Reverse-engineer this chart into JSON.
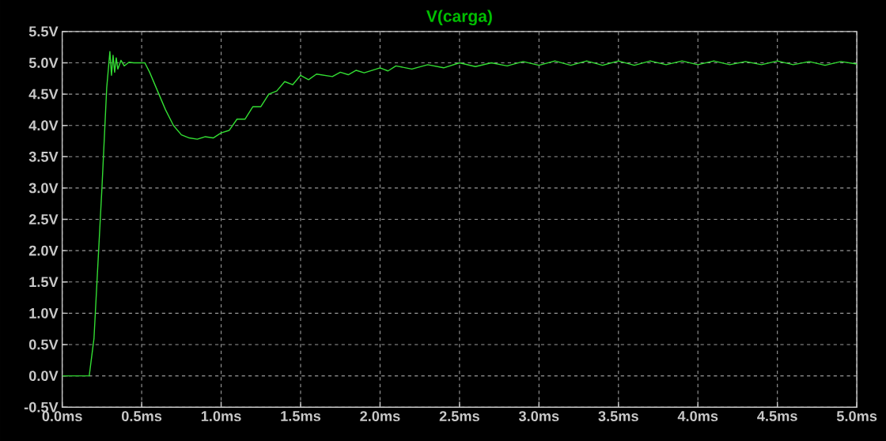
{
  "chart_data": {
    "type": "line",
    "title": "V(carga)",
    "x": [
      0,
      0.17,
      0.2,
      0.25,
      0.28,
      0.3,
      0.31,
      0.32,
      0.33,
      0.34,
      0.35,
      0.37,
      0.39,
      0.42,
      0.45,
      0.52,
      0.55,
      0.6,
      0.65,
      0.7,
      0.75,
      0.8,
      0.85,
      0.9,
      0.95,
      1.0,
      1.05,
      1.1,
      1.15,
      1.2,
      1.25,
      1.3,
      1.35,
      1.4,
      1.45,
      1.5,
      1.55,
      1.6,
      1.7,
      1.75,
      1.8,
      1.85,
      1.9,
      2.0,
      2.05,
      2.1,
      2.2,
      2.3,
      2.4,
      2.5,
      2.6,
      2.7,
      2.8,
      2.9,
      3.0,
      3.1,
      3.2,
      3.3,
      3.4,
      3.5,
      3.6,
      3.7,
      3.8,
      3.9,
      4.0,
      4.1,
      4.2,
      4.3,
      4.4,
      4.5,
      4.6,
      4.7,
      4.8,
      4.9,
      5.0
    ],
    "series": [
      {
        "color": "#33dd33",
        "values": [
          0,
          0,
          0.6,
          3.0,
          4.6,
          5.18,
          4.8,
          5.12,
          4.85,
          5.08,
          4.9,
          5.04,
          4.95,
          5.01,
          5.0,
          5.0,
          4.85,
          4.55,
          4.25,
          4.0,
          3.85,
          3.8,
          3.78,
          3.82,
          3.8,
          3.88,
          3.92,
          4.1,
          4.1,
          4.3,
          4.3,
          4.5,
          4.55,
          4.7,
          4.65,
          4.8,
          4.73,
          4.82,
          4.78,
          4.85,
          4.81,
          4.88,
          4.84,
          4.92,
          4.87,
          4.95,
          4.9,
          4.97,
          4.92,
          5.0,
          4.94,
          5.0,
          4.95,
          5.02,
          4.96,
          5.03,
          4.96,
          5.03,
          4.96,
          5.03,
          4.96,
          5.03,
          4.97,
          5.03,
          4.97,
          5.03,
          4.97,
          5.02,
          4.97,
          5.03,
          4.97,
          5.02,
          4.96,
          5.02,
          4.98
        ]
      }
    ],
    "xlim": [
      0,
      5
    ],
    "ylim": [
      -0.5,
      5.5
    ],
    "xticks": [
      {
        "value": 0,
        "label": "0.0ms"
      },
      {
        "value": 0.5,
        "label": "0.5ms"
      },
      {
        "value": 1,
        "label": "1.0ms"
      },
      {
        "value": 1.5,
        "label": "1.5ms"
      },
      {
        "value": 2,
        "label": "2.0ms"
      },
      {
        "value": 2.5,
        "label": "2.5ms"
      },
      {
        "value": 3,
        "label": "3.0ms"
      },
      {
        "value": 3.5,
        "label": "3.5ms"
      },
      {
        "value": 4,
        "label": "4.0ms"
      },
      {
        "value": 4.5,
        "label": "4.5ms"
      },
      {
        "value": 5,
        "label": "5.0ms"
      }
    ],
    "yticks": [
      {
        "value": -0.5,
        "label": "-0.5V"
      },
      {
        "value": 0,
        "label": "0.0V"
      },
      {
        "value": 0.5,
        "label": "0.5V"
      },
      {
        "value": 1,
        "label": "1.0V"
      },
      {
        "value": 1.5,
        "label": "1.5V"
      },
      {
        "value": 2,
        "label": "2.0V"
      },
      {
        "value": 2.5,
        "label": "2.5V"
      },
      {
        "value": 3,
        "label": "3.0V"
      },
      {
        "value": 3.5,
        "label": "3.5V"
      },
      {
        "value": 4,
        "label": "4.0V"
      },
      {
        "value": 4.5,
        "label": "4.5V"
      },
      {
        "value": 5,
        "label": "5.0V"
      },
      {
        "value": 5.5,
        "label": "5.5V"
      }
    ],
    "grid": true,
    "marker": "none",
    "line_style": "solid"
  }
}
